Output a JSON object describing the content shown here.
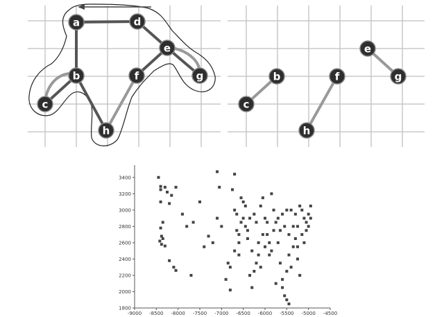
{
  "colors": {
    "grid": "#c8c8c8",
    "node_fill": "#2e2e2e",
    "node_stroke": "#888888",
    "edge_dark": "#555555",
    "edge_light": "#999999",
    "outline": "#222222",
    "point": "#444444",
    "axis": "#555555"
  },
  "graph_left": {
    "nodes": [
      {
        "id": "a",
        "label": "a"
      },
      {
        "id": "d",
        "label": "d"
      },
      {
        "id": "e",
        "label": "e"
      },
      {
        "id": "b",
        "label": "b"
      },
      {
        "id": "f",
        "label": "f"
      },
      {
        "id": "g",
        "label": "g"
      },
      {
        "id": "c",
        "label": "c"
      },
      {
        "id": "h",
        "label": "h"
      }
    ],
    "edges": [
      {
        "from": "a",
        "to": "d",
        "tone": "dark"
      },
      {
        "from": "a",
        "to": "b",
        "tone": "dark"
      },
      {
        "from": "d",
        "to": "e",
        "tone": "dark"
      },
      {
        "from": "e",
        "to": "g",
        "tone": "dark"
      },
      {
        "from": "e",
        "to": "f",
        "tone": "dark"
      },
      {
        "from": "b",
        "to": "c",
        "tone": "dark"
      },
      {
        "from": "b",
        "to": "h",
        "tone": "dark"
      },
      {
        "from": "f",
        "to": "h",
        "tone": "light"
      }
    ],
    "tour_arrow": {
      "from": "d",
      "to": "a",
      "shape": "arrow-icon"
    }
  },
  "graph_right": {
    "nodes": [
      {
        "id": "b",
        "label": "b"
      },
      {
        "id": "c",
        "label": "c"
      },
      {
        "id": "f",
        "label": "f"
      },
      {
        "id": "h",
        "label": "h"
      },
      {
        "id": "e",
        "label": "e"
      },
      {
        "id": "g",
        "label": "g"
      }
    ],
    "edges": [
      {
        "from": "c",
        "to": "b",
        "tone": "light"
      },
      {
        "from": "h",
        "to": "f",
        "tone": "light"
      },
      {
        "from": "e",
        "to": "g",
        "tone": "light"
      }
    ]
  },
  "chart_data": {
    "type": "scatter",
    "xlim": [
      -9000,
      -4500
    ],
    "ylim": [
      1800,
      3500
    ],
    "x_ticks": [
      -9000,
      -8500,
      -8000,
      -7500,
      -7000,
      -6500,
      -6000,
      -5500,
      -5000,
      -4500
    ],
    "y_ticks": [
      1800,
      2000,
      2200,
      2400,
      2600,
      2800,
      3000,
      3200,
      3400
    ],
    "x_tick_labels": [
      "-9000",
      "-8500",
      "-8000",
      "-7500",
      "-7000",
      "-6500",
      "-6000",
      "-5500",
      "-5000",
      "-4500"
    ],
    "y_tick_labels": [
      "1800",
      "2000",
      "2200",
      "2400",
      "2600",
      "2800",
      "3000",
      "3200",
      "3400"
    ],
    "grid": false,
    "points": [
      [
        -8450,
        3400
      ],
      [
        -8400,
        3290
      ],
      [
        -8400,
        3250
      ],
      [
        -8300,
        3280
      ],
      [
        -8250,
        3220
      ],
      [
        -8150,
        3180
      ],
      [
        -8050,
        3280
      ],
      [
        -8400,
        3100
      ],
      [
        -8200,
        3080
      ],
      [
        -8350,
        2850
      ],
      [
        -8400,
        2780
      ],
      [
        -8380,
        2680
      ],
      [
        -8350,
        2650
      ],
      [
        -8420,
        2620
      ],
      [
        -8380,
        2580
      ],
      [
        -8300,
        2560
      ],
      [
        -8200,
        2380
      ],
      [
        -8100,
        2300
      ],
      [
        -8050,
        2260
      ],
      [
        -7900,
        2950
      ],
      [
        -7800,
        2800
      ],
      [
        -7650,
        2850
      ],
      [
        -7700,
        2200
      ],
      [
        -7500,
        3100
      ],
      [
        -7400,
        2550
      ],
      [
        -7300,
        2680
      ],
      [
        -7200,
        2600
      ],
      [
        -7100,
        3470
      ],
      [
        -7050,
        3280
      ],
      [
        -7100,
        2900
      ],
      [
        -7000,
        2800
      ],
      [
        -6900,
        2150
      ],
      [
        -6850,
        2350
      ],
      [
        -6800,
        2020
      ],
      [
        -6700,
        3440
      ],
      [
        -6750,
        3250
      ],
      [
        -6700,
        3000
      ],
      [
        -6650,
        2950
      ],
      [
        -6650,
        2750
      ],
      [
        -6600,
        2600
      ],
      [
        -6600,
        2450
      ],
      [
        -6550,
        3150
      ],
      [
        -6500,
        3100
      ],
      [
        -6450,
        2800
      ],
      [
        -6400,
        2650
      ],
      [
        -6350,
        2200
      ],
      [
        -6300,
        2050
      ],
      [
        -6250,
        2950
      ],
      [
        -6200,
        2850
      ],
      [
        -6150,
        2600
      ],
      [
        -6100,
        3050
      ],
      [
        -6050,
        3150
      ],
      [
        -6000,
        2900
      ],
      [
        -5950,
        2700
      ],
      [
        -5900,
        2450
      ],
      [
        -5850,
        3200
      ],
      [
        -5800,
        3000
      ],
      [
        -5750,
        2850
      ],
      [
        -5700,
        2600
      ],
      [
        -5650,
        2350
      ],
      [
        -5600,
        2150
      ],
      [
        -5550,
        1950
      ],
      [
        -5500,
        1900
      ],
      [
        -5450,
        1850
      ],
      [
        -5400,
        3000
      ],
      [
        -5350,
        2800
      ],
      [
        -5300,
        2650
      ],
      [
        -5250,
        2400
      ],
      [
        -5200,
        2200
      ],
      [
        -5150,
        3000
      ],
      [
        -5100,
        2900
      ],
      [
        -5050,
        2850
      ],
      [
        -5000,
        2950
      ],
      [
        -4950,
        3050
      ],
      [
        -4950,
        2900
      ],
      [
        -5050,
        2750
      ],
      [
        -5150,
        2700
      ],
      [
        -5250,
        2800
      ],
      [
        -5350,
        2550
      ],
      [
        -5450,
        2450
      ],
      [
        -5500,
        2250
      ],
      [
        -5600,
        2050
      ],
      [
        -5700,
        2900
      ],
      [
        -5800,
        2750
      ],
      [
        -5900,
        2600
      ],
      [
        -6000,
        2550
      ],
      [
        -6100,
        2300
      ],
      [
        -6200,
        2350
      ],
      [
        -6300,
        2500
      ],
      [
        -6400,
        2750
      ],
      [
        -6500,
        2900
      ],
      [
        -6600,
        2700
      ],
      [
        -6700,
        2500
      ],
      [
        -6800,
        2300
      ],
      [
        -5550,
        2800
      ],
      [
        -5450,
        2700
      ],
      [
        -5650,
        2750
      ],
      [
        -5750,
        2100
      ],
      [
        -5850,
        2500
      ],
      [
        -5950,
        2850
      ],
      [
        -6050,
        2700
      ],
      [
        -6150,
        2450
      ],
      [
        -5500,
        3000
      ],
      [
        -5600,
        2950
      ],
      [
        -5300,
        2950
      ],
      [
        -5200,
        3050
      ],
      [
        -5100,
        2600
      ],
      [
        -5000,
        2800
      ],
      [
        -5250,
        2550
      ],
      [
        -5400,
        2300
      ],
      [
        -6250,
        2250
      ],
      [
        -6350,
        2900
      ],
      [
        -6450,
        3050
      ],
      [
        -6550,
        2850
      ]
    ]
  }
}
